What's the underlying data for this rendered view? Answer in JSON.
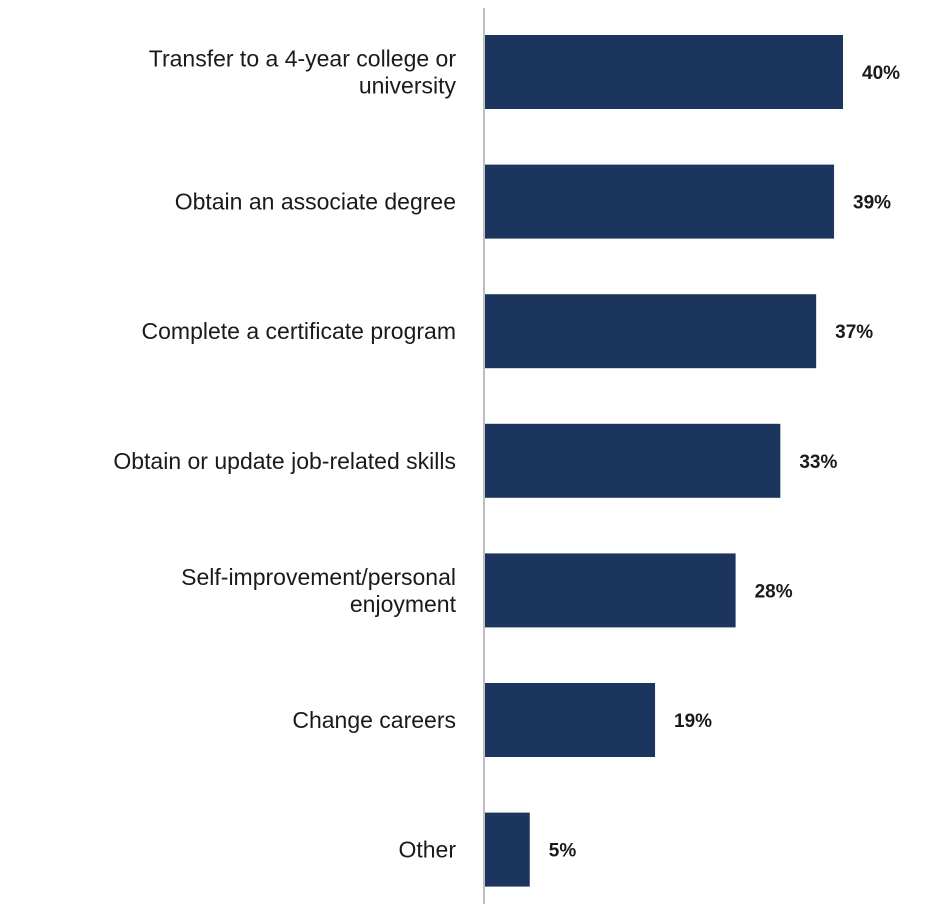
{
  "chart_data": {
    "type": "bar",
    "orientation": "horizontal",
    "categories": [
      "Transfer to a 4-year college or university",
      "Obtain an associate degree",
      "Complete a certificate program",
      "Obtain or update job-related skills",
      "Self-improvement/personal enjoyment",
      "Change careers",
      "Other"
    ],
    "category_lines": [
      [
        "Transfer to a 4-year college or",
        "university"
      ],
      [
        "Obtain an associate degree"
      ],
      [
        "Complete a certificate program"
      ],
      [
        "Obtain or update job-related skills"
      ],
      [
        "Self-improvement/personal",
        "enjoyment"
      ],
      [
        "Change careers"
      ],
      [
        "Other"
      ]
    ],
    "values": [
      40,
      39,
      37,
      33,
      28,
      19,
      5
    ],
    "value_labels": [
      "40%",
      "39%",
      "37%",
      "33%",
      "28%",
      "19%",
      "5%"
    ],
    "value_unit": "%",
    "xlim": [
      0,
      40
    ],
    "bar_color": "#1c355e",
    "axis_color": "#bfbfbf",
    "grid": false,
    "legend": "none"
  }
}
